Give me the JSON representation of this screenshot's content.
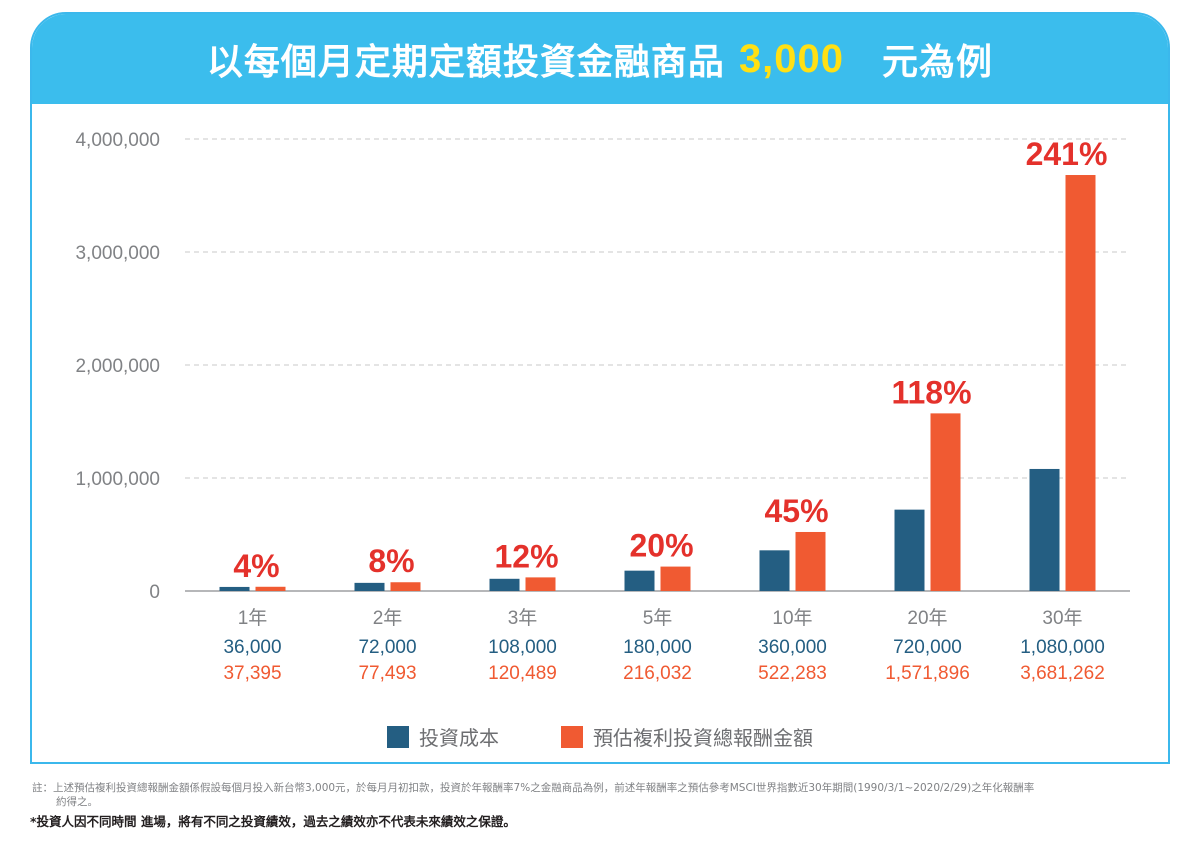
{
  "title": {
    "prefix": "以每個月定期定額投資金融商品",
    "amount": "3,000",
    "suffix": "元為例"
  },
  "colors": {
    "header_bg": "#3bbded",
    "cost": "#245e82",
    "return": "#f05a32",
    "percent": "#e4312b",
    "axis_text": "#808285"
  },
  "chart_data": {
    "type": "bar",
    "categories": [
      "1年",
      "2年",
      "3年",
      "5年",
      "10年",
      "20年",
      "30年"
    ],
    "series": [
      {
        "name": "投資成本",
        "values": [
          36000,
          72000,
          108000,
          180000,
          360000,
          720000,
          1080000
        ]
      },
      {
        "name": "預估複利投資總報酬金額",
        "values": [
          37395,
          77493,
          120489,
          216032,
          522283,
          1571896,
          3681262
        ]
      }
    ],
    "cost_labels": [
      "36,000",
      "72,000",
      "108,000",
      "180,000",
      "360,000",
      "720,000",
      "1,080,000"
    ],
    "return_labels": [
      "37,395",
      "77,493",
      "120,489",
      "216,032",
      "522,283",
      "1,571,896",
      "3,681,262"
    ],
    "percent_labels": [
      "4%",
      "8%",
      "12%",
      "20%",
      "45%",
      "118%",
      "241%"
    ],
    "y_ticks": [
      0,
      1000000,
      2000000,
      3000000,
      4000000
    ],
    "y_tick_labels": [
      "0",
      "1,000,000",
      "2,000,000",
      "3,000,000",
      "4,000,000"
    ],
    "ylim": [
      0,
      4000000
    ],
    "grid": true,
    "legend_position": "bottom"
  },
  "footnote_line1": "註：上述預估複利投資總報酬金額係假設每個月投入新台幣3,000元，於每月月初扣款，投資於年報酬率7%之金融商品為例，前述年報酬率之預估參考MSCI世界指數近30年期間(1990/3/1~2020/2/29)之年化報酬率",
  "footnote_line2": "約得之。",
  "disclaimer": "*投資人因不同時間 進場，將有不同之投資績效，過去之績效亦不代表未來績效之保證。"
}
